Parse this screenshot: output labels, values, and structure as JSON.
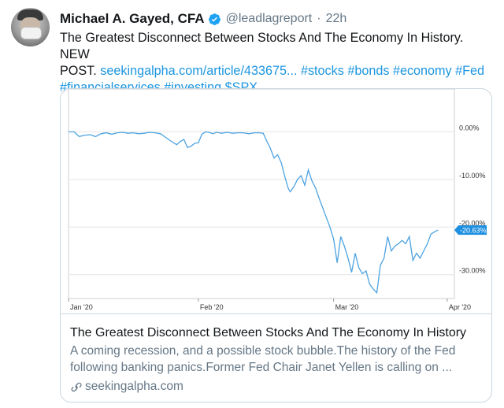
{
  "tweet": {
    "author_name": "Michael A. Gayed, CFA",
    "handle": "@leadlagreport",
    "separator": "·",
    "time": "22h",
    "text_lines": [
      [
        {
          "t": "The Greatest Disconnect Between Stocks And The Economy In History. NEW",
          "link": false
        }
      ],
      [
        {
          "t": "POST. ",
          "link": false
        },
        {
          "t": "seekingalpha.com/article/433675...",
          "link": true
        },
        {
          "t": " ",
          "link": false
        },
        {
          "t": "#stocks",
          "link": true
        },
        {
          "t": " ",
          "link": false
        },
        {
          "t": "#bonds",
          "link": true
        },
        {
          "t": " ",
          "link": false
        },
        {
          "t": "#economy",
          "link": true
        },
        {
          "t": " ",
          "link": false
        },
        {
          "t": "#Fed",
          "link": true
        }
      ],
      [
        {
          "t": "#financialservices",
          "link": true
        },
        {
          "t": " ",
          "link": false
        },
        {
          "t": "#investing",
          "link": true
        },
        {
          "t": " ",
          "link": false
        },
        {
          "t": "$SPX",
          "link": true
        }
      ]
    ],
    "colors": {
      "link": "#1b95e0",
      "verified": "#1da1f2",
      "chart_line": "#4da3e0",
      "badge": "#1d8fe0"
    }
  },
  "card": {
    "title": "The Greatest Disconnect Between Stocks And The Economy In History",
    "description": "A coming recession, and a possible stock bubble.The history of the Fed following banking panics.Former Fed Chair Janet Yellen is calling on ...",
    "domain": "seekingalpha.com",
    "link_icon": "link-icon"
  },
  "chart_data": {
    "type": "line",
    "x_tick_labels": [
      "Jan '20",
      "Feb '20",
      "Mar '20",
      "Apr '20"
    ],
    "y_tick_labels": [
      "0.00%",
      "-10.00%",
      "-20.00%",
      "-30.00%"
    ],
    "y_ticks": [
      0,
      -10,
      -20,
      -30
    ],
    "ylim": [
      -36,
      8
    ],
    "last_value_label": "-20.63%",
    "series": [
      {
        "values": [
          [
            0,
            0.0
          ],
          [
            3,
            0.0
          ],
          [
            6,
            -1.0
          ],
          [
            9,
            -0.7
          ],
          [
            12,
            -0.6
          ],
          [
            15,
            -1.0
          ],
          [
            18,
            -0.4
          ],
          [
            21,
            -0.2
          ],
          [
            24,
            -0.5
          ],
          [
            27,
            -0.2
          ],
          [
            30,
            -0.1
          ],
          [
            33,
            -0.3
          ],
          [
            36,
            -0.2
          ],
          [
            39,
            -0.4
          ],
          [
            42,
            -0.3
          ],
          [
            45,
            -0.1
          ],
          [
            48,
            -0.2
          ],
          [
            51,
            -0.4
          ],
          [
            54,
            -1.2
          ],
          [
            57,
            -2.0
          ],
          [
            60,
            -2.7
          ],
          [
            62,
            -2.0
          ],
          [
            64,
            -1.6
          ],
          [
            66,
            -3.3
          ],
          [
            68,
            -3.0
          ],
          [
            70,
            -2.4
          ],
          [
            72,
            -2.3
          ],
          [
            74,
            -0.5
          ],
          [
            76,
            0.0
          ],
          [
            78,
            -0.1
          ],
          [
            80,
            -0.4
          ],
          [
            82,
            -0.1
          ],
          [
            85,
            -0.3
          ],
          [
            88,
            -0.1
          ],
          [
            91,
            -0.3
          ],
          [
            94,
            -0.2
          ],
          [
            97,
            -0.2
          ],
          [
            100,
            -0.4
          ],
          [
            103,
            -0.2
          ],
          [
            106,
            -0.2
          ],
          [
            108,
            -0.3
          ],
          [
            110,
            -2.0
          ],
          [
            112,
            -3.5
          ],
          [
            114,
            -5.5
          ],
          [
            116,
            -4.8
          ],
          [
            118,
            -6.5
          ],
          [
            120,
            -9.5
          ],
          [
            122,
            -12.0
          ],
          [
            123,
            -12.6
          ],
          [
            125,
            -11.5
          ],
          [
            127,
            -10.0
          ],
          [
            129,
            -9.2
          ],
          [
            131,
            -11.2
          ],
          [
            133,
            -8.0
          ],
          [
            135,
            -10.3
          ],
          [
            137,
            -11.8
          ],
          [
            139,
            -14.0
          ],
          [
            141,
            -16.0
          ],
          [
            143,
            -18.0
          ],
          [
            145,
            -20.0
          ],
          [
            147,
            -22.5
          ],
          [
            149,
            -27.5
          ],
          [
            151,
            -22.0
          ],
          [
            153,
            -24.0
          ],
          [
            155,
            -26.5
          ],
          [
            157,
            -29.5
          ],
          [
            159,
            -25.5
          ],
          [
            161,
            -28.5
          ],
          [
            163,
            -29.8
          ],
          [
            165,
            -29.2
          ],
          [
            167,
            -32.0
          ],
          [
            169,
            -33.0
          ],
          [
            171,
            -33.8
          ],
          [
            173,
            -28.0
          ],
          [
            175,
            -26.5
          ],
          [
            177,
            -22.0
          ],
          [
            179,
            -25.0
          ],
          [
            181,
            -24.0
          ],
          [
            183,
            -23.5
          ],
          [
            185,
            -22.8
          ],
          [
            187,
            -23.5
          ],
          [
            189,
            -22.0
          ],
          [
            191,
            -27.0
          ],
          [
            193,
            -25.5
          ],
          [
            195,
            -26.5
          ],
          [
            197,
            -25.0
          ],
          [
            199,
            -23.5
          ],
          [
            201,
            -21.5
          ],
          [
            203,
            -21.0
          ],
          [
            205,
            -20.63
          ]
        ]
      }
    ]
  }
}
